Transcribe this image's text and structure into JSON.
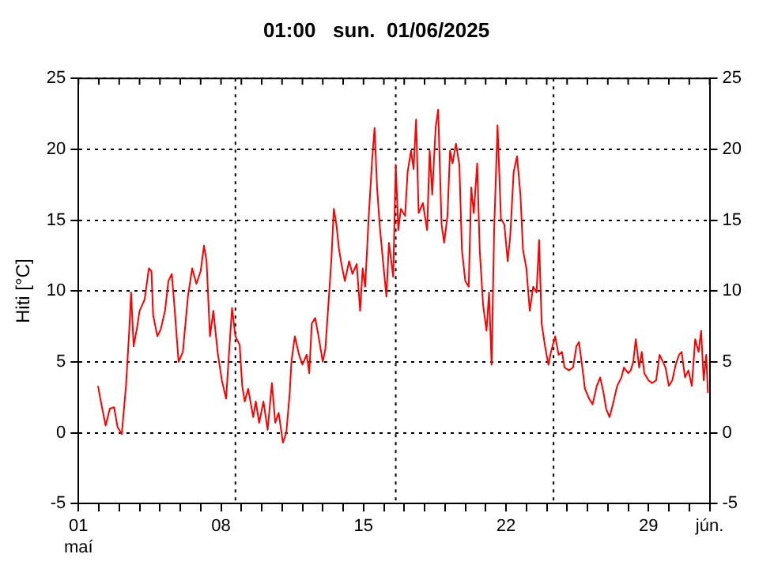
{
  "chart_data": {
    "type": "line",
    "title": "01:00   sun.  01/06/2025",
    "ylabel": "Hiti [°C]",
    "x": [
      "2025-05-01T23:00",
      "2025-05-02T03:00",
      "2025-05-02T08:00",
      "2025-05-02T13:00",
      "2025-05-02T18:00",
      "2025-05-02T22:00",
      "2025-05-03T03:00",
      "2025-05-03T08:00",
      "2025-05-03T12:00",
      "2025-05-03T14:00",
      "2025-05-03T17:00",
      "2025-05-03T21:00",
      "2025-05-04T00:00",
      "2025-05-04T06:00",
      "2025-05-04T11:00",
      "2025-05-04T14:00",
      "2025-05-04T16:00",
      "2025-05-04T21:00",
      "2025-05-05T01:00",
      "2025-05-05T06:00",
      "2025-05-05T10:00",
      "2025-05-05T14:00",
      "2025-05-05T17:00",
      "2025-05-05T22:00",
      "2025-05-06T03:00",
      "2025-05-06T09:00",
      "2025-05-06T14:00",
      "2025-05-06T19:00",
      "2025-05-07T00:00",
      "2025-05-07T04:00",
      "2025-05-07T07:00",
      "2025-05-07T11:00",
      "2025-05-07T15:00",
      "2025-05-07T20:00",
      "2025-05-08T01:00",
      "2025-05-08T06:00",
      "2025-05-08T10:00",
      "2025-05-08T13:00",
      "2025-05-08T17:00",
      "2025-05-08T22:00",
      "2025-05-09T01:00",
      "2025-05-09T04:00",
      "2025-05-09T08:00",
      "2025-05-09T14:00",
      "2025-05-09T17:00",
      "2025-05-09T21:00",
      "2025-05-10T02:00",
      "2025-05-10T07:00",
      "2025-05-10T12:00",
      "2025-05-10T16:00",
      "2025-05-10T20:00",
      "2025-05-11T01:00",
      "2025-05-11T05:00",
      "2025-05-11T09:00",
      "2025-05-11T11:00",
      "2025-05-11T15:00",
      "2025-05-11T20:00",
      "2025-05-12T00:00",
      "2025-05-12T05:00",
      "2025-05-12T08:00",
      "2025-05-12T11:00",
      "2025-05-12T15:00",
      "2025-05-12T19:00",
      "2025-05-13T00:00",
      "2025-05-13T03:00",
      "2025-05-13T07:00",
      "2025-05-13T10:00",
      "2025-05-13T13:00",
      "2025-05-13T16:00",
      "2025-05-13T19:00",
      "2025-05-13T22:00",
      "2025-05-14T02:00",
      "2025-05-14T07:00",
      "2025-05-14T11:00",
      "2025-05-14T16:00",
      "2025-05-14T20:00",
      "2025-05-14T23:00",
      "2025-05-15T02:00",
      "2025-05-15T06:00",
      "2025-05-15T10:00",
      "2025-05-15T13:00",
      "2025-05-15T16:00",
      "2025-05-15T19:00",
      "2025-05-15T23:00",
      "2025-05-16T03:00",
      "2025-05-16T06:00",
      "2025-05-16T11:00",
      "2025-05-16T14:00",
      "2025-05-16T17:00",
      "2025-05-16T20:00",
      "2025-05-17T01:00",
      "2025-05-17T04:00",
      "2025-05-17T08:00",
      "2025-05-17T11:00",
      "2025-05-17T14:00",
      "2025-05-17T17:00",
      "2025-05-17T22:00",
      "2025-05-18T03:00",
      "2025-05-18T06:00",
      "2025-05-18T09:00",
      "2025-05-18T13:00",
      "2025-05-18T16:00",
      "2025-05-18T20:00",
      "2025-05-18T23:00",
      "2025-05-19T03:00",
      "2025-05-19T06:00",
      "2025-05-19T09:00",
      "2025-05-19T13:00",
      "2025-05-19T17:00",
      "2025-05-19T20:00",
      "2025-05-20T00:00",
      "2025-05-20T04:00",
      "2025-05-20T07:00",
      "2025-05-20T10:00",
      "2025-05-20T14:00",
      "2025-05-20T17:00",
      "2025-05-20T21:00",
      "2025-05-21T01:00",
      "2025-05-21T04:00",
      "2025-05-21T07:00",
      "2025-05-21T10:00",
      "2025-05-21T14:00",
      "2025-05-21T18:00",
      "2025-05-21T22:00",
      "2025-05-22T02:00",
      "2025-05-22T05:00",
      "2025-05-22T09:00",
      "2025-05-22T13:00",
      "2025-05-22T17:00",
      "2025-05-22T20:00",
      "2025-05-23T00:00",
      "2025-05-23T04:00",
      "2025-05-23T08:00",
      "2025-05-23T12:00",
      "2025-05-23T15:00",
      "2025-05-23T18:00",
      "2025-05-23T22:00",
      "2025-05-24T02:00",
      "2025-05-24T05:00",
      "2025-05-24T10:00",
      "2025-05-24T14:00",
      "2025-05-24T18:00",
      "2025-05-24T21:00",
      "2025-05-25T02:00",
      "2025-05-25T07:00",
      "2025-05-25T11:00",
      "2025-05-25T14:00",
      "2025-05-25T18:00",
      "2025-05-25T21:00",
      "2025-05-26T02:00",
      "2025-05-26T06:00",
      "2025-05-26T11:00",
      "2025-05-26T15:00",
      "2025-05-26T19:00",
      "2025-05-26T22:00",
      "2025-05-27T02:00",
      "2025-05-27T06:00",
      "2025-05-27T11:00",
      "2025-05-27T16:00",
      "2025-05-27T19:00",
      "2025-05-28T00:00",
      "2025-05-28T03:00",
      "2025-05-28T06:00",
      "2025-05-28T09:00",
      "2025-05-28T13:00",
      "2025-05-28T16:00",
      "2025-05-28T19:00",
      "2025-05-29T00:00",
      "2025-05-29T04:00",
      "2025-05-29T09:00",
      "2025-05-29T13:00",
      "2025-05-29T17:00",
      "2025-05-29T20:00",
      "2025-05-30T00:00",
      "2025-05-30T04:00",
      "2025-05-30T08:00",
      "2025-05-30T12:00",
      "2025-05-30T15:00",
      "2025-05-30T19:00",
      "2025-05-30T23:00",
      "2025-05-31T03:00",
      "2025-05-31T07:00",
      "2025-05-31T11:00",
      "2025-05-31T14:00",
      "2025-05-31T17:00",
      "2025-05-31T20:00",
      "2025-05-31T22:00"
    ],
    "series": [
      {
        "color": "#ff0000",
        "values": [
          3.3,
          2.0,
          0.5,
          1.7,
          1.8,
          0.4,
          -0.1,
          3.3,
          7.4,
          9.9,
          6.1,
          7.4,
          8.6,
          9.4,
          11.6,
          11.4,
          8.3,
          6.8,
          7.3,
          8.6,
          10.7,
          11.2,
          9.0,
          5.0,
          5.7,
          9.6,
          11.6,
          10.5,
          11.4,
          13.2,
          12.1,
          6.8,
          8.6,
          5.7,
          3.7,
          2.4,
          6.1,
          8.8,
          6.8,
          6.2,
          3.3,
          2.2,
          3.1,
          1.1,
          2.2,
          0.7,
          2.2,
          0.2,
          3.5,
          0.7,
          1.4,
          -0.7,
          0.0,
          2.8,
          5.0,
          6.8,
          5.5,
          4.8,
          5.5,
          4.2,
          7.7,
          8.1,
          6.8,
          5.0,
          5.9,
          9.4,
          12.1,
          15.8,
          14.7,
          13.0,
          11.9,
          10.7,
          12.1,
          11.2,
          11.9,
          8.6,
          11.6,
          10.3,
          15.1,
          19.1,
          21.5,
          17.3,
          14.7,
          12.1,
          9.6,
          13.4,
          11.0,
          18.9,
          14.3,
          15.8,
          15.3,
          18.4,
          19.9,
          18.6,
          22.1,
          15.5,
          16.2,
          14.3,
          19.9,
          16.8,
          21.5,
          22.8,
          14.7,
          13.4,
          15.3,
          19.9,
          19.0,
          20.4,
          18.9,
          12.9,
          10.7,
          10.3,
          17.3,
          15.5,
          19.0,
          12.9,
          9.0,
          7.2,
          9.9,
          4.8,
          14.3,
          21.7,
          15.1,
          14.7,
          12.1,
          13.9,
          18.4,
          19.5,
          16.8,
          12.9,
          11.6,
          8.6,
          10.3,
          9.9,
          13.6,
          7.7,
          6.1,
          4.8,
          5.7,
          6.8,
          5.5,
          5.7,
          4.6,
          4.4,
          4.6,
          6.1,
          6.4,
          4.6,
          3.1,
          2.4,
          2.0,
          3.3,
          3.9,
          2.8,
          1.7,
          1.1,
          2.0,
          3.3,
          3.9,
          4.6,
          4.2,
          4.4,
          5.0,
          6.6,
          4.6,
          5.7,
          4.2,
          3.7,
          3.5,
          3.7,
          5.5,
          5.0,
          4.6,
          3.3,
          3.7,
          4.8,
          5.5,
          5.7,
          3.9,
          4.4,
          3.3,
          6.6,
          5.7,
          7.2,
          3.7,
          5.5,
          2.8
        ]
      }
    ],
    "xlim": [
      "2025-05-01",
      "2025-06-01"
    ],
    "xticks": [
      {
        "value": "2025-05-01",
        "label": "01\nmaí"
      },
      {
        "value": "2025-05-02",
        "label": null
      },
      {
        "value": "2025-05-03",
        "label": null
      },
      {
        "value": "2025-05-04",
        "label": null
      },
      {
        "value": "2025-05-05",
        "label": null
      },
      {
        "value": "2025-05-06",
        "label": null
      },
      {
        "value": "2025-05-07",
        "label": null
      },
      {
        "value": "2025-05-08",
        "label": "08"
      },
      {
        "value": "2025-05-09",
        "label": null
      },
      {
        "value": "2025-05-10",
        "label": null
      },
      {
        "value": "2025-05-11",
        "label": null
      },
      {
        "value": "2025-05-12",
        "label": null
      },
      {
        "value": "2025-05-13",
        "label": null
      },
      {
        "value": "2025-05-14",
        "label": null
      },
      {
        "value": "2025-05-15",
        "label": "15"
      },
      {
        "value": "2025-05-16",
        "label": null
      },
      {
        "value": "2025-05-17",
        "label": null
      },
      {
        "value": "2025-05-18",
        "label": null
      },
      {
        "value": "2025-05-19",
        "label": null
      },
      {
        "value": "2025-05-20",
        "label": null
      },
      {
        "value": "2025-05-21",
        "label": null
      },
      {
        "value": "2025-05-22",
        "label": "22"
      },
      {
        "value": "2025-05-23",
        "label": null
      },
      {
        "value": "2025-05-24",
        "label": null
      },
      {
        "value": "2025-05-25",
        "label": null
      },
      {
        "value": "2025-05-26",
        "label": null
      },
      {
        "value": "2025-05-27",
        "label": null
      },
      {
        "value": "2025-05-28",
        "label": null
      },
      {
        "value": "2025-05-29",
        "label": "29"
      },
      {
        "value": "2025-05-30",
        "label": null
      },
      {
        "value": "2025-05-31",
        "label": null
      },
      {
        "value": "2025-06-01",
        "label": "jún."
      }
    ],
    "ylim": [
      -5,
      25
    ],
    "yticks": [
      -5,
      0,
      5,
      10,
      15,
      20,
      25
    ],
    "y2lim": [
      -5,
      25
    ],
    "y2ticks": [
      -5,
      0,
      5,
      10,
      15,
      20,
      25
    ],
    "ref_lines": [
      {
        "axis": "x",
        "value": "2025-05-08T17:00",
        "line_style": "dotted"
      },
      {
        "axis": "x",
        "value": "2025-05-16T14:00",
        "line_style": "dotted"
      },
      {
        "axis": "x",
        "value": "2025-05-24T08:00",
        "line_style": "dotted"
      }
    ],
    "grid": "y",
    "legend": false,
    "marker": "none",
    "line_style": "solid"
  }
}
